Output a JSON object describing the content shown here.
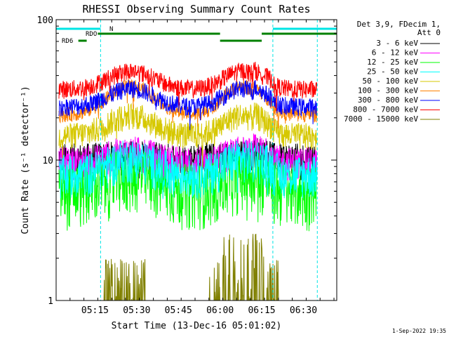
{
  "chart_data": {
    "type": "line",
    "title": "RHESSI Observing Summary Count Rates",
    "xlabel": "Start Time (13-Dec-16 05:01:02)",
    "ylabel": "Count Rate (s⁻¹ detector⁻¹)",
    "yscale": "log",
    "ylim": [
      1,
      100
    ],
    "xlim_minutes": [
      0,
      101
    ],
    "x_ticks": [
      "05:15",
      "05:30",
      "05:45",
      "06:00",
      "06:15",
      "06:30"
    ],
    "x_tick_minutes": [
      14,
      29,
      44,
      59,
      74,
      89
    ],
    "y_ticks": [
      "1",
      "10",
      "100"
    ],
    "legend_header": [
      "Det 3,9, FDecim 1,",
      "Att 0"
    ],
    "legend_position": "right",
    "timestamp": "1-Sep-2022 19:35",
    "flags": [
      {
        "name": "N",
        "color": "#00e5e5",
        "segments": [
          [
            0,
            16
          ],
          [
            78,
            101
          ]
        ]
      },
      {
        "name": "RDO",
        "color": "#008000",
        "segments": [
          [
            15,
            59
          ],
          [
            74,
            101
          ]
        ]
      },
      {
        "name": "RD6",
        "color": "#008000",
        "segments": [
          [
            8,
            11
          ],
          [
            59,
            74
          ]
        ]
      }
    ],
    "vertical_markers_minutes": [
      16,
      78,
      94
    ],
    "series": [
      {
        "name": "3 - 6 keV",
        "color": "#000000",
        "min": 7.2,
        "base": 10.5,
        "hump": 1.05,
        "noise": 0.25,
        "spikes": 0,
        "drop": 0
      },
      {
        "name": "6 - 12 keV",
        "color": "#ff00ff",
        "min": 7.2,
        "base": 9.5,
        "hump": 1.2,
        "noise": 0.3,
        "spikes": 0,
        "drop": 0
      },
      {
        "name": "12 - 25 keV",
        "color": "#00ff00",
        "min": 3.0,
        "base": 6.2,
        "hump": 1.3,
        "noise": 0.5,
        "spikes": 0,
        "drop": 0
      },
      {
        "name": "25 - 50 keV",
        "color": "#00ffff",
        "min": 4.5,
        "base": 8.0,
        "hump": 1.3,
        "noise": 0.35,
        "spikes": 0,
        "drop": 0
      },
      {
        "name": "50 - 100 keV",
        "color": "#d6c800",
        "min": 7.2,
        "base": 15.0,
        "hump": 1.4,
        "noise": 0.22,
        "spikes": 0,
        "drop": 0
      },
      {
        "name": "100 - 300 keV",
        "color": "#ff8000",
        "min": 7.2,
        "base": 21.0,
        "hump": 1.6,
        "noise": 0.12,
        "spikes": 0,
        "drop": 0
      },
      {
        "name": "300 - 800 keV",
        "color": "#0000ff",
        "min": 7.2,
        "base": 24.0,
        "hump": 1.35,
        "noise": 0.15,
        "spikes": 0,
        "drop": 0
      },
      {
        "name": "800 - 7000 keV",
        "color": "#ff0000",
        "min": 7.2,
        "base": 32.0,
        "hump": 1.35,
        "noise": 0.15,
        "spikes": 0,
        "drop": 0
      },
      {
        "name": "7000 - 15000 keV",
        "color": "#808000",
        "min": 1.0,
        "base": 1.0,
        "hump": 1.0,
        "noise": 0,
        "spikes": 1,
        "drop": 0
      }
    ]
  }
}
